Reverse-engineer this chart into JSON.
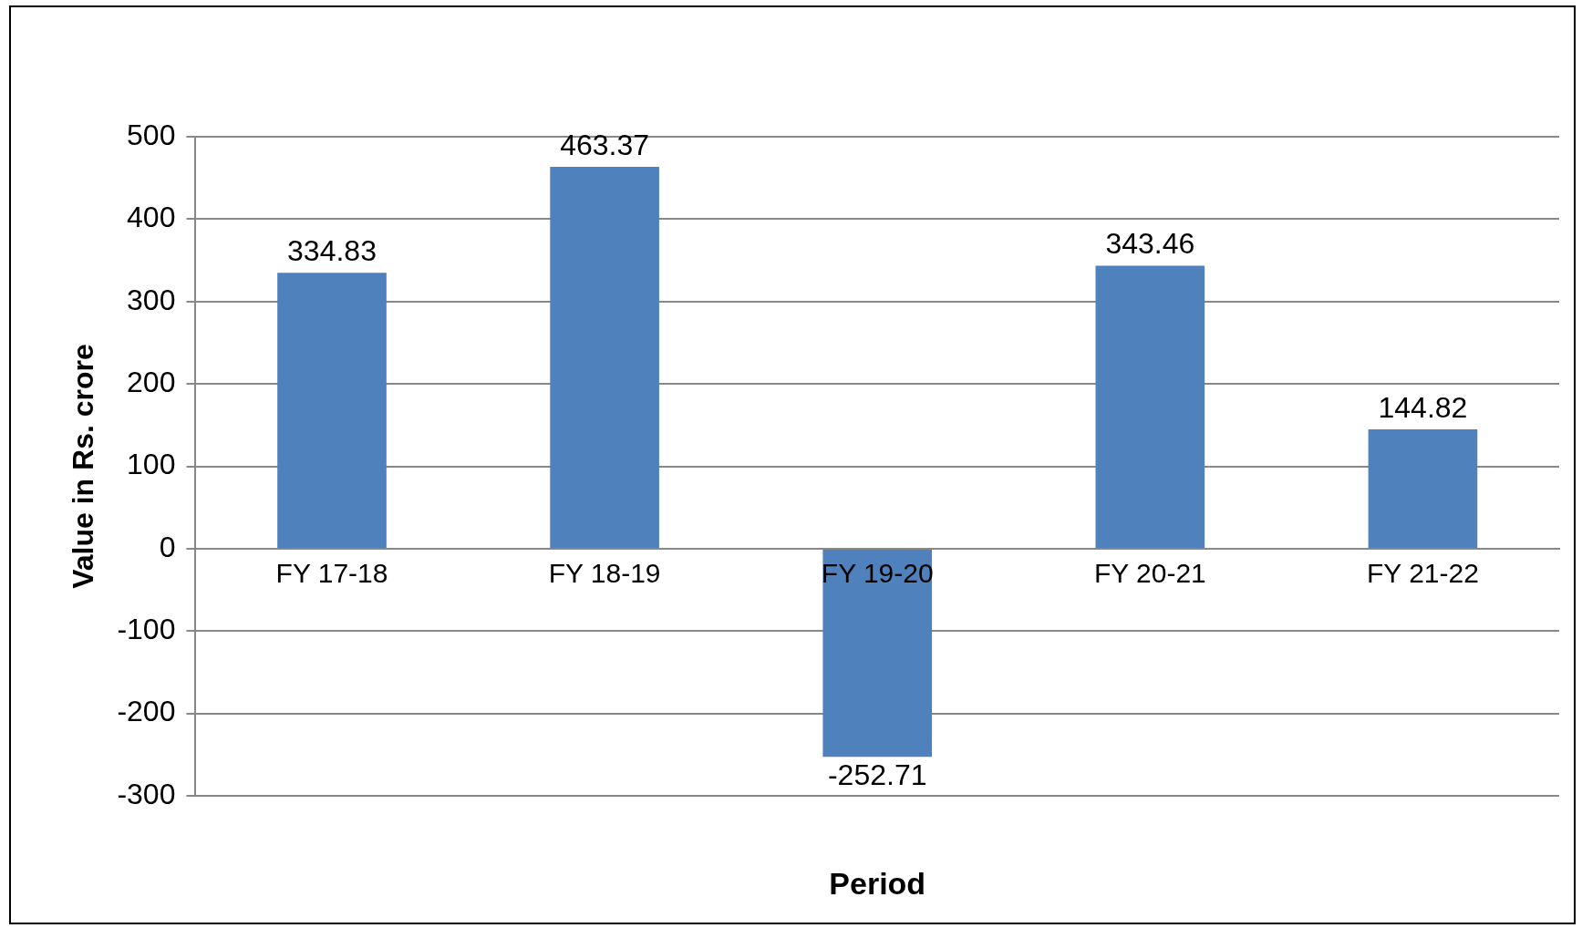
{
  "chart_data": {
    "type": "bar",
    "xlabel": "Period",
    "ylabel": "Value in Rs. crore",
    "categories": [
      "FY 17-18",
      "FY 18-19",
      "FY 19-20",
      "FY 20-21",
      "FY 21-22"
    ],
    "values": [
      334.83,
      463.37,
      -252.71,
      343.46,
      144.82
    ],
    "color": "#4f81bd",
    "ylim": [
      -300,
      500
    ],
    "yticks": [
      -300,
      -200,
      -100,
      0,
      100,
      200,
      300,
      400,
      500
    ],
    "grid": "y",
    "data_labels": true
  }
}
